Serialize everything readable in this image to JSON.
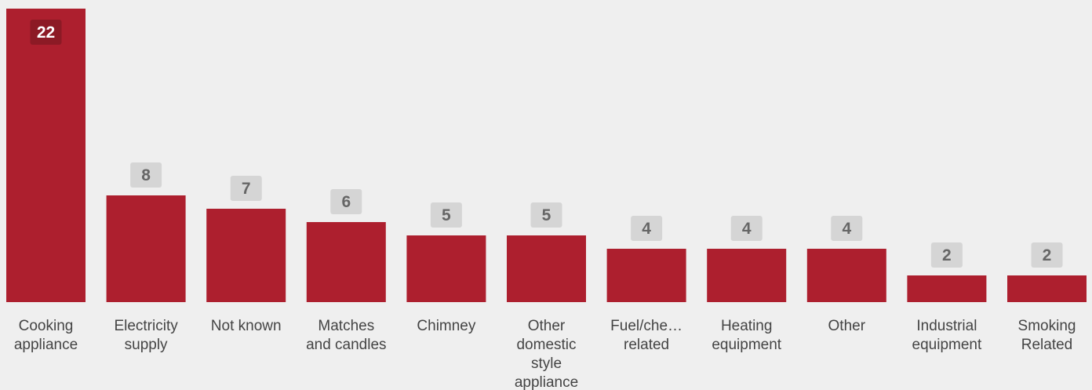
{
  "chart_data": {
    "type": "bar",
    "categories": [
      [
        "Cooking",
        "appliance"
      ],
      [
        "Electricity",
        "supply"
      ],
      [
        "Not known"
      ],
      [
        "Matches",
        "and candles"
      ],
      [
        "Chimney"
      ],
      [
        "Other",
        "domestic",
        "style",
        "appliance"
      ],
      [
        "Fuel/che…",
        "related"
      ],
      [
        "Heating",
        "equipment"
      ],
      [
        "Other"
      ],
      [
        "Industrial",
        "equipment"
      ],
      [
        "Smoking",
        "Related"
      ]
    ],
    "values": [
      22,
      8,
      7,
      6,
      5,
      5,
      4,
      4,
      4,
      2,
      2
    ],
    "ylim": [
      0,
      22
    ],
    "grid": false,
    "colors": {
      "bar": "#ad1f2e",
      "label_box": "#d5d5d5",
      "label_text": "#666666",
      "inside_label_box": "#8c1a25",
      "inside_label_text": "#ffffff"
    }
  }
}
